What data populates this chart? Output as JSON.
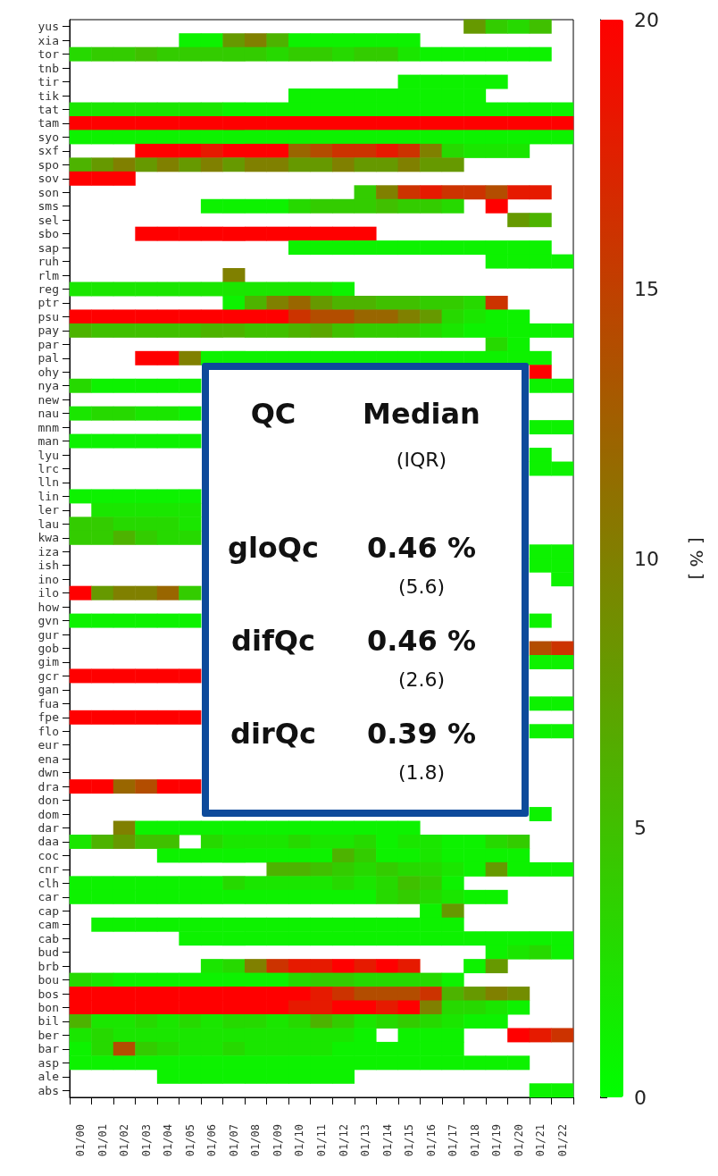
{
  "chart_data": {
    "type": "heatmap",
    "categories": [
      "01/00",
      "01/01",
      "01/02",
      "01/03",
      "01/04",
      "01/05",
      "01/06",
      "01/07",
      "01/08",
      "01/09",
      "01/10",
      "01/11",
      "01/12",
      "01/13",
      "01/14",
      "01/15",
      "01/16",
      "01/17",
      "01/18",
      "01/19",
      "01/20",
      "01/21",
      "01/22"
    ],
    "y_categories": [
      "yus",
      "xia",
      "tor",
      "tnb",
      "tir",
      "tik",
      "tat",
      "tam",
      "syo",
      "sxf",
      "spo",
      "sov",
      "son",
      "sms",
      "sel",
      "sbo",
      "sap",
      "ruh",
      "rlm",
      "reg",
      "ptr",
      "psu",
      "pay",
      "par",
      "pal",
      "ohy",
      "nya",
      "new",
      "nau",
      "mnm",
      "man",
      "lyu",
      "lrc",
      "lln",
      "lin",
      "ler",
      "lau",
      "kwa",
      "iza",
      "ish",
      "ino",
      "ilo",
      "how",
      "gvn",
      "gur",
      "gob",
      "gim",
      "gcr",
      "gan",
      "fua",
      "fpe",
      "flo",
      "eur",
      "ena",
      "dwn",
      "dra",
      "don",
      "dom",
      "dar",
      "daa",
      "coc",
      "cnr",
      "clh",
      "car",
      "cap",
      "cam",
      "cab",
      "bud",
      "brb",
      "bou",
      "bos",
      "bon",
      "bil",
      "ber",
      "bar",
      "asp",
      "ale",
      "abs"
    ],
    "cells": [
      [
        null,
        null,
        null,
        null,
        null,
        null,
        null,
        null,
        null,
        null,
        null,
        null,
        null,
        null,
        null,
        null,
        null,
        null,
        8,
        4,
        3,
        5,
        null
      ],
      [
        null,
        null,
        null,
        null,
        null,
        1,
        1,
        8,
        10,
        6,
        1,
        1,
        1,
        1,
        1,
        1,
        null,
        null,
        null,
        null,
        null,
        null,
        null
      ],
      [
        3,
        4,
        4,
        5,
        4,
        4,
        4,
        4,
        4,
        3,
        4,
        4,
        3,
        4,
        4,
        2,
        1,
        1,
        1,
        1,
        1,
        1,
        null
      ],
      [
        null,
        null,
        null,
        null,
        null,
        null,
        null,
        null,
        null,
        null,
        null,
        null,
        null,
        null,
        null,
        null,
        null,
        null,
        null,
        null,
        null,
        null,
        null
      ],
      [
        null,
        null,
        null,
        null,
        null,
        null,
        null,
        null,
        null,
        null,
        null,
        null,
        null,
        null,
        null,
        1,
        1,
        1,
        1,
        1,
        null,
        null,
        null
      ],
      [
        null,
        null,
        null,
        null,
        null,
        null,
        null,
        null,
        null,
        null,
        1,
        1,
        1,
        1,
        1,
        1,
        1,
        1,
        1,
        null,
        null,
        null,
        null
      ],
      [
        2,
        2,
        2,
        2,
        2,
        2,
        2,
        1,
        1,
        1,
        1,
        1,
        1,
        1,
        1,
        1,
        1,
        1,
        1,
        1,
        1,
        1,
        1
      ],
      [
        20,
        20,
        20,
        20,
        20,
        20,
        20,
        20,
        20,
        20,
        20,
        20,
        20,
        20,
        20,
        20,
        20,
        20,
        20,
        20,
        20,
        20,
        20
      ],
      [
        1,
        1,
        1,
        1,
        1,
        1,
        1,
        1,
        1,
        1,
        1,
        1,
        1,
        1,
        1,
        1,
        1,
        1,
        1,
        1,
        1,
        1,
        1
      ],
      [
        null,
        null,
        null,
        20,
        20,
        20,
        18,
        20,
        20,
        20,
        12,
        14,
        16,
        16,
        18,
        16,
        10,
        3,
        2,
        2,
        2,
        null,
        null
      ],
      [
        6,
        8,
        10,
        8,
        10,
        8,
        10,
        8,
        10,
        10,
        8,
        8,
        10,
        8,
        8,
        10,
        8,
        8,
        null,
        null,
        null,
        null,
        null
      ],
      [
        20,
        20,
        20,
        null,
        null,
        null,
        null,
        null,
        null,
        null,
        null,
        null,
        null,
        null,
        null,
        null,
        null,
        null,
        null,
        null,
        null,
        null,
        null
      ],
      [
        null,
        null,
        null,
        null,
        null,
        null,
        null,
        null,
        null,
        null,
        null,
        null,
        null,
        4,
        10,
        16,
        18,
        16,
        16,
        14,
        18,
        18,
        null
      ],
      [
        null,
        null,
        null,
        null,
        null,
        null,
        1,
        1,
        1,
        1,
        3,
        4,
        4,
        4,
        5,
        4,
        4,
        3,
        null,
        20,
        null,
        null,
        null
      ],
      [
        null,
        null,
        null,
        null,
        null,
        null,
        null,
        null,
        null,
        null,
        null,
        null,
        null,
        null,
        null,
        null,
        null,
        null,
        null,
        null,
        8,
        6,
        null
      ],
      [
        null,
        null,
        null,
        20,
        20,
        20,
        20,
        20,
        20,
        20,
        20,
        20,
        20,
        20,
        null,
        null,
        null,
        null,
        null,
        null,
        null,
        null,
        null
      ],
      [
        null,
        null,
        null,
        null,
        null,
        null,
        null,
        null,
        null,
        null,
        1,
        1,
        1,
        1,
        1,
        1,
        1,
        1,
        1,
        1,
        1,
        1,
        null
      ],
      [
        null,
        null,
        null,
        null,
        null,
        null,
        null,
        null,
        null,
        null,
        null,
        null,
        null,
        null,
        null,
        null,
        null,
        null,
        null,
        1,
        1,
        1,
        1
      ],
      [
        null,
        null,
        null,
        null,
        null,
        null,
        null,
        10,
        null,
        null,
        null,
        null,
        null,
        null,
        null,
        null,
        null,
        null,
        null,
        null,
        null,
        null,
        null
      ],
      [
        2,
        2,
        2,
        2,
        2,
        2,
        2,
        2,
        2,
        2,
        2,
        2,
        1,
        null,
        null,
        null,
        null,
        null,
        null,
        null,
        null,
        null,
        null
      ],
      [
        null,
        null,
        null,
        null,
        null,
        null,
        null,
        1,
        6,
        10,
        12,
        8,
        6,
        6,
        5,
        5,
        4,
        4,
        3,
        16,
        null,
        null,
        null
      ],
      [
        20,
        20,
        20,
        20,
        20,
        20,
        20,
        20,
        20,
        20,
        16,
        14,
        14,
        12,
        12,
        10,
        8,
        3,
        2,
        1,
        1,
        null,
        null
      ],
      [
        6,
        5,
        5,
        5,
        5,
        5,
        6,
        6,
        5,
        5,
        6,
        7,
        5,
        4,
        4,
        4,
        3,
        2,
        1,
        1,
        1,
        1,
        1
      ],
      [
        null,
        null,
        null,
        null,
        null,
        null,
        null,
        null,
        null,
        null,
        null,
        null,
        null,
        null,
        null,
        null,
        null,
        null,
        null,
        3,
        1,
        null,
        null
      ],
      [
        null,
        null,
        null,
        20,
        20,
        10,
        1,
        1,
        1,
        1,
        1,
        1,
        1,
        1,
        1,
        1,
        1,
        1,
        1,
        1,
        1,
        1,
        null
      ],
      [
        null,
        null,
        null,
        null,
        null,
        null,
        null,
        null,
        null,
        null,
        null,
        null,
        null,
        null,
        null,
        null,
        null,
        null,
        null,
        null,
        null,
        20,
        null
      ],
      [
        3,
        1,
        1,
        1,
        1,
        1,
        null,
        null,
        null,
        null,
        null,
        null,
        null,
        null,
        null,
        null,
        null,
        null,
        null,
        null,
        null,
        1,
        1
      ],
      [
        null,
        null,
        null,
        null,
        null,
        null,
        null,
        null,
        null,
        null,
        null,
        null,
        null,
        null,
        null,
        null,
        null,
        null,
        null,
        null,
        null,
        null,
        null
      ],
      [
        2,
        3,
        3,
        2,
        2,
        1,
        null,
        null,
        null,
        null,
        null,
        null,
        null,
        null,
        null,
        null,
        null,
        null,
        null,
        null,
        null,
        null,
        null
      ],
      [
        null,
        null,
        null,
        null,
        null,
        null,
        null,
        null,
        null,
        null,
        null,
        null,
        null,
        null,
        null,
        null,
        null,
        null,
        null,
        null,
        null,
        1,
        1
      ],
      [
        1,
        1,
        1,
        1,
        1,
        1,
        null,
        null,
        null,
        null,
        null,
        null,
        null,
        null,
        null,
        null,
        null,
        null,
        null,
        null,
        null,
        null,
        null
      ],
      [
        null,
        null,
        null,
        null,
        null,
        null,
        null,
        null,
        null,
        null,
        null,
        null,
        null,
        null,
        null,
        null,
        null,
        null,
        null,
        null,
        null,
        1,
        null
      ],
      [
        null,
        null,
        null,
        null,
        null,
        null,
        null,
        null,
        null,
        null,
        null,
        null,
        null,
        null,
        null,
        null,
        null,
        null,
        null,
        null,
        null,
        1,
        1
      ],
      [
        null,
        null,
        null,
        null,
        null,
        null,
        null,
        null,
        null,
        null,
        null,
        null,
        null,
        null,
        null,
        null,
        null,
        null,
        null,
        null,
        null,
        null,
        null
      ],
      [
        1,
        1,
        1,
        1,
        1,
        1,
        null,
        null,
        null,
        null,
        null,
        null,
        null,
        null,
        null,
        null,
        null,
        null,
        null,
        null,
        null,
        null,
        null
      ],
      [
        null,
        2,
        2,
        2,
        2,
        2,
        null,
        null,
        null,
        null,
        null,
        null,
        null,
        null,
        null,
        null,
        null,
        null,
        null,
        null,
        null,
        null,
        null
      ],
      [
        4,
        4,
        3,
        3,
        3,
        2,
        null,
        null,
        null,
        null,
        null,
        null,
        null,
        null,
        null,
        null,
        null,
        null,
        null,
        null,
        null,
        null,
        null
      ],
      [
        4,
        4,
        6,
        4,
        3,
        3,
        null,
        null,
        null,
        null,
        null,
        null,
        null,
        null,
        null,
        null,
        null,
        null,
        null,
        null,
        null,
        null,
        null
      ],
      [
        null,
        null,
        null,
        null,
        null,
        null,
        null,
        null,
        null,
        null,
        null,
        null,
        null,
        null,
        null,
        null,
        null,
        null,
        null,
        null,
        null,
        1,
        1
      ],
      [
        null,
        null,
        null,
        null,
        null,
        null,
        null,
        null,
        null,
        null,
        null,
        null,
        null,
        null,
        null,
        null,
        null,
        null,
        null,
        null,
        null,
        1,
        1
      ],
      [
        null,
        null,
        null,
        null,
        null,
        null,
        null,
        null,
        null,
        null,
        null,
        null,
        null,
        null,
        null,
        null,
        null,
        null,
        null,
        null,
        null,
        null,
        1
      ],
      [
        20,
        8,
        10,
        10,
        12,
        4,
        null,
        null,
        null,
        null,
        null,
        null,
        null,
        null,
        null,
        null,
        null,
        null,
        null,
        null,
        null,
        null,
        null
      ],
      [
        null,
        null,
        null,
        null,
        null,
        null,
        null,
        null,
        null,
        null,
        null,
        null,
        null,
        null,
        null,
        null,
        null,
        null,
        null,
        null,
        null,
        null,
        null
      ],
      [
        1,
        1,
        1,
        1,
        1,
        1,
        null,
        null,
        null,
        null,
        null,
        null,
        null,
        null,
        null,
        null,
        null,
        null,
        null,
        null,
        null,
        1,
        null
      ],
      [
        null,
        null,
        null,
        null,
        null,
        null,
        null,
        null,
        null,
        null,
        null,
        null,
        null,
        null,
        null,
        null,
        null,
        null,
        null,
        null,
        null,
        null,
        null
      ],
      [
        null,
        null,
        null,
        null,
        null,
        null,
        null,
        null,
        null,
        null,
        null,
        null,
        null,
        null,
        null,
        null,
        null,
        null,
        null,
        null,
        null,
        14,
        16
      ],
      [
        null,
        null,
        null,
        null,
        null,
        null,
        null,
        null,
        null,
        null,
        null,
        null,
        null,
        null,
        null,
        null,
        null,
        null,
        null,
        null,
        null,
        1,
        1
      ],
      [
        20,
        20,
        20,
        20,
        20,
        20,
        null,
        null,
        null,
        null,
        null,
        null,
        null,
        null,
        null,
        null,
        null,
        null,
        null,
        null,
        null,
        null,
        null
      ],
      [
        null,
        null,
        null,
        null,
        null,
        null,
        null,
        null,
        null,
        null,
        null,
        null,
        null,
        null,
        null,
        null,
        null,
        null,
        null,
        null,
        null,
        null,
        null
      ],
      [
        null,
        null,
        null,
        null,
        null,
        null,
        null,
        null,
        null,
        null,
        null,
        null,
        null,
        null,
        null,
        null,
        null,
        null,
        null,
        null,
        null,
        1,
        1
      ],
      [
        20,
        20,
        20,
        20,
        20,
        20,
        null,
        null,
        null,
        null,
        null,
        null,
        null,
        null,
        null,
        null,
        null,
        null,
        null,
        null,
        null,
        null,
        null
      ],
      [
        null,
        null,
        null,
        null,
        null,
        null,
        null,
        null,
        null,
        null,
        null,
        null,
        null,
        null,
        null,
        null,
        null,
        null,
        null,
        null,
        null,
        1,
        1
      ],
      [
        null,
        null,
        null,
        null,
        null,
        null,
        null,
        null,
        null,
        null,
        null,
        null,
        null,
        null,
        null,
        null,
        null,
        null,
        null,
        null,
        null,
        null,
        null
      ],
      [
        null,
        null,
        null,
        null,
        null,
        null,
        null,
        null,
        null,
        null,
        null,
        null,
        null,
        null,
        null,
        null,
        null,
        null,
        null,
        null,
        null,
        null,
        null
      ],
      [
        null,
        null,
        null,
        null,
        null,
        null,
        null,
        null,
        null,
        null,
        null,
        null,
        null,
        null,
        null,
        null,
        null,
        null,
        null,
        null,
        null,
        null,
        null
      ],
      [
        20,
        20,
        12,
        14,
        20,
        20,
        null,
        null,
        null,
        null,
        null,
        null,
        null,
        null,
        null,
        null,
        null,
        null,
        null,
        null,
        null,
        null,
        null
      ],
      [
        null,
        null,
        null,
        null,
        null,
        null,
        null,
        null,
        null,
        null,
        null,
        null,
        null,
        null,
        null,
        null,
        null,
        null,
        null,
        null,
        null,
        null,
        null
      ],
      [
        null,
        null,
        null,
        null,
        null,
        null,
        null,
        null,
        null,
        null,
        null,
        null,
        null,
        null,
        null,
        null,
        null,
        null,
        null,
        null,
        null,
        1,
        null
      ],
      [
        null,
        null,
        10,
        1,
        1,
        1,
        1,
        1,
        1,
        1,
        1,
        1,
        1,
        1,
        1,
        1,
        null,
        null,
        null,
        null,
        null,
        null,
        null
      ],
      [
        2,
        6,
        8,
        5,
        5,
        null,
        3,
        2,
        2,
        2,
        3,
        2,
        2,
        3,
        1,
        2,
        2,
        1,
        1,
        3,
        4,
        null,
        null
      ],
      [
        null,
        null,
        null,
        null,
        1,
        1,
        1,
        1,
        1,
        1,
        1,
        1,
        6,
        4,
        1,
        1,
        2,
        1,
        1,
        1,
        1,
        null,
        null
      ],
      [
        null,
        null,
        null,
        null,
        null,
        null,
        null,
        null,
        null,
        6,
        6,
        5,
        4,
        3,
        4,
        3,
        3,
        2,
        1,
        8,
        1,
        1,
        1
      ],
      [
        1,
        1,
        1,
        1,
        1,
        1,
        1,
        3,
        2,
        2,
        2,
        2,
        3,
        2,
        3,
        5,
        4,
        1,
        null,
        null,
        null,
        null,
        null
      ],
      [
        1,
        1,
        1,
        1,
        1,
        1,
        1,
        1,
        1,
        1,
        1,
        1,
        1,
        1,
        3,
        4,
        3,
        2,
        1,
        1,
        null,
        null,
        null
      ],
      [
        null,
        null,
        null,
        null,
        null,
        null,
        null,
        null,
        null,
        null,
        null,
        null,
        null,
        null,
        null,
        null,
        1,
        8,
        null,
        null,
        null,
        null,
        null
      ],
      [
        null,
        1,
        1,
        1,
        1,
        1,
        1,
        1,
        1,
        1,
        1,
        1,
        1,
        1,
        1,
        1,
        1,
        1,
        null,
        null,
        null,
        null,
        null
      ],
      [
        null,
        null,
        null,
        null,
        null,
        1,
        1,
        1,
        1,
        1,
        1,
        1,
        1,
        1,
        1,
        1,
        1,
        1,
        1,
        1,
        1,
        1,
        1
      ],
      [
        null,
        null,
        null,
        null,
        null,
        null,
        null,
        null,
        null,
        null,
        null,
        null,
        null,
        null,
        null,
        null,
        null,
        null,
        null,
        1,
        2,
        3,
        1
      ],
      [
        null,
        null,
        null,
        null,
        null,
        null,
        2,
        3,
        10,
        16,
        18,
        18,
        20,
        18,
        20,
        18,
        null,
        null,
        1,
        8,
        null,
        null,
        null
      ],
      [
        3,
        2,
        1,
        1,
        1,
        1,
        1,
        1,
        1,
        1,
        3,
        4,
        4,
        3,
        3,
        3,
        3,
        1,
        null,
        null,
        null,
        null,
        null
      ],
      [
        20,
        20,
        20,
        20,
        20,
        20,
        20,
        20,
        20,
        20,
        20,
        18,
        16,
        14,
        14,
        14,
        16,
        6,
        8,
        10,
        9,
        null,
        null
      ],
      [
        20,
        20,
        20,
        20,
        20,
        20,
        20,
        20,
        20,
        20,
        18,
        18,
        20,
        20,
        18,
        20,
        10,
        3,
        3,
        2,
        1,
        null,
        null
      ],
      [
        6,
        2,
        2,
        3,
        2,
        3,
        2,
        3,
        3,
        2,
        3,
        6,
        4,
        2,
        3,
        4,
        3,
        2,
        1,
        1,
        null,
        null,
        null
      ],
      [
        2,
        3,
        2,
        2,
        2,
        2,
        2,
        2,
        2,
        2,
        2,
        2,
        2,
        1,
        null,
        1,
        1,
        1,
        null,
        null,
        20,
        18,
        16
      ],
      [
        1,
        3,
        14,
        4,
        3,
        2,
        2,
        3,
        2,
        2,
        2,
        2,
        1,
        1,
        1,
        1,
        1,
        1,
        null,
        null,
        null,
        null,
        null
      ],
      [
        1,
        1,
        1,
        1,
        1,
        1,
        1,
        1,
        1,
        1,
        1,
        1,
        1,
        1,
        1,
        1,
        1,
        1,
        1,
        1,
        1,
        null,
        null
      ],
      [
        null,
        null,
        null,
        null,
        1,
        1,
        1,
        1,
        1,
        1,
        1,
        1,
        1,
        null,
        null,
        null,
        null,
        null,
        null,
        null,
        null,
        null,
        null
      ],
      [
        null,
        null,
        null,
        null,
        null,
        null,
        null,
        null,
        null,
        null,
        null,
        null,
        null,
        null,
        null,
        null,
        null,
        null,
        null,
        null,
        null,
        1,
        1
      ]
    ],
    "colors": [
      "#00ff00",
      "#808000",
      "#ff0000"
    ],
    "clim": [
      0,
      20
    ],
    "cticks": [
      0,
      5,
      10,
      15,
      20
    ],
    "clabel": "[ % ]",
    "annotations": [
      "QC",
      "Median",
      "(IQR)",
      "gloQc",
      "0.46 %",
      "(5.6)",
      "difQc",
      "0.46 %",
      "(2.6)",
      "dirQc",
      "0.39 %",
      "(1.8)"
    ]
  }
}
